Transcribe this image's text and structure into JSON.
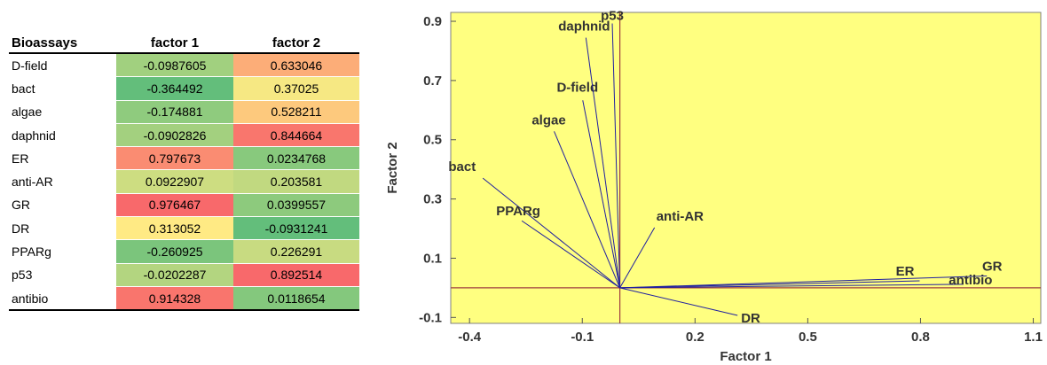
{
  "table": {
    "headers": [
      "Bioassays",
      "factor 1",
      "factor 2"
    ],
    "rows": [
      {
        "name": "D-field",
        "f1": "-0.0987605",
        "f2": "0.633046"
      },
      {
        "name": "bact",
        "f1": "-0.364492",
        "f2": "0.37025"
      },
      {
        "name": "algae",
        "f1": "-0.174881",
        "f2": "0.528211"
      },
      {
        "name": "daphnid",
        "f1": "-0.0902826",
        "f2": "0.844664"
      },
      {
        "name": "ER",
        "f1": "0.797673",
        "f2": "0.0234768"
      },
      {
        "name": "anti-AR",
        "f1": "0.0922907",
        "f2": "0.203581"
      },
      {
        "name": "GR",
        "f1": "0.976467",
        "f2": "0.0399557"
      },
      {
        "name": "DR",
        "f1": "0.313052",
        "f2": "-0.0931241"
      },
      {
        "name": "PPARg",
        "f1": "-0.260925",
        "f2": "0.226291"
      },
      {
        "name": "p53",
        "f1": "-0.0202287",
        "f2": "0.892514"
      },
      {
        "name": "antibio",
        "f1": "0.914328",
        "f2": "0.0118654"
      }
    ],
    "colors": {
      "red": "#f8696b",
      "orange": "#fba276",
      "yellow": "#ffeb84",
      "green": "#63be7b"
    }
  },
  "chart_data": {
    "type": "scatter",
    "subtype": "biplot",
    "title": "",
    "xlabel": "Factor 1",
    "ylabel": "Factor 2",
    "xlim": [
      -0.45,
      1.12
    ],
    "ylim": [
      -0.12,
      0.93
    ],
    "xticks": [
      "-0.4",
      "-0.1",
      "0.2",
      "0.5",
      "0.8",
      "1.1"
    ],
    "xtick_values": [
      -0.4,
      -0.1,
      0.2,
      0.5,
      0.8,
      1.1
    ],
    "yticks": [
      "-0.1",
      "0.1",
      "0.3",
      "0.5",
      "0.7",
      "0.9"
    ],
    "ytick_values": [
      -0.1,
      0.1,
      0.3,
      0.5,
      0.7,
      0.9
    ],
    "origin": [
      0,
      0
    ],
    "vectors": [
      {
        "label": "D-field",
        "x": -0.0987605,
        "y": 0.633046
      },
      {
        "label": "bact",
        "x": -0.364492,
        "y": 0.37025
      },
      {
        "label": "algae",
        "x": -0.174881,
        "y": 0.528211
      },
      {
        "label": "daphnid",
        "x": -0.0902826,
        "y": 0.844664
      },
      {
        "label": "ER",
        "x": 0.797673,
        "y": 0.0234768
      },
      {
        "label": "anti-AR",
        "x": 0.0922907,
        "y": 0.203581
      },
      {
        "label": "GR",
        "x": 0.976467,
        "y": 0.0399557
      },
      {
        "label": "DR",
        "x": 0.313052,
        "y": -0.0931241
      },
      {
        "label": "PPARg",
        "x": -0.260925,
        "y": 0.226291
      },
      {
        "label": "p53",
        "x": -0.0202287,
        "y": 0.892514
      },
      {
        "label": "antibio",
        "x": 0.914328,
        "y": 0.0118654
      }
    ],
    "colors": {
      "background": "#ffff80",
      "vector": "#2020a0",
      "axis_line": "#a04040",
      "label": "#333333"
    },
    "grid": false,
    "legend": "none"
  }
}
